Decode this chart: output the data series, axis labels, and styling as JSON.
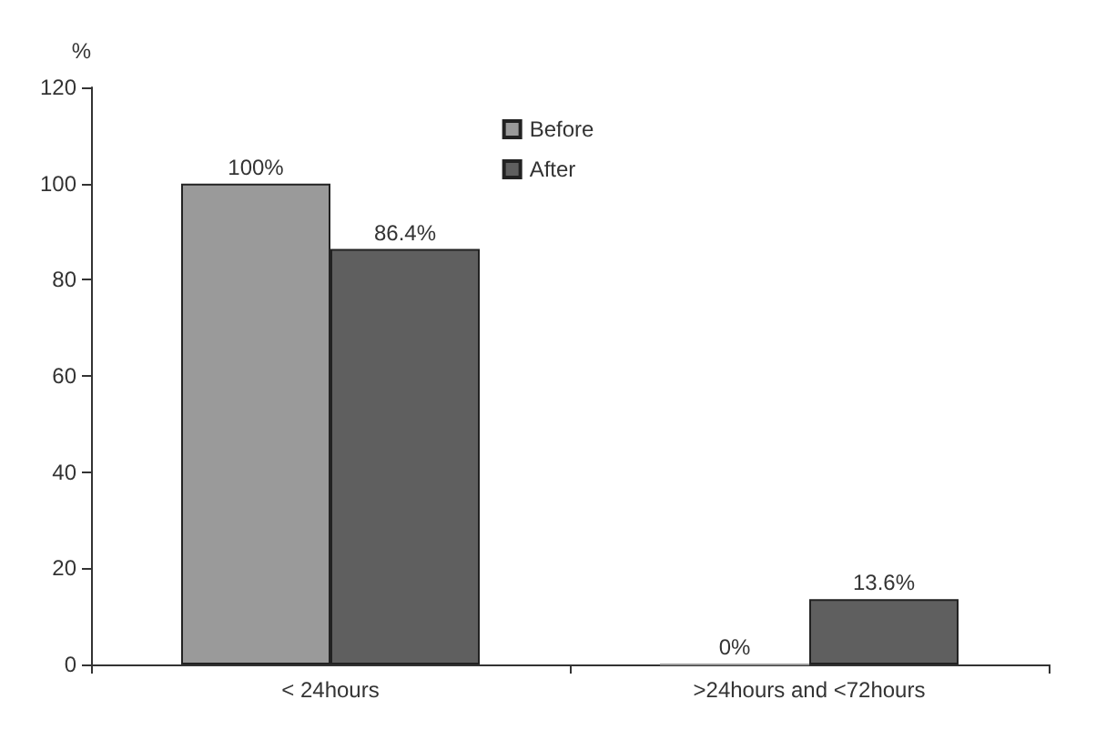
{
  "chart_data": {
    "type": "bar",
    "ylabel": "%",
    "categories": [
      "< 24hours",
      ">24hours and <72hours"
    ],
    "series": [
      {
        "name": "Before",
        "color": "#9a9a9a",
        "values": [
          100,
          0
        ],
        "value_labels": [
          "100%",
          "0%"
        ]
      },
      {
        "name": "After",
        "color": "#5f5f5f",
        "values": [
          86.4,
          13.6
        ],
        "value_labels": [
          "86.4%",
          "13.6%"
        ]
      }
    ],
    "ylim": [
      0,
      120
    ],
    "yticks": [
      0,
      20,
      40,
      60,
      80,
      100,
      120
    ],
    "grid": false,
    "legend": "top"
  }
}
